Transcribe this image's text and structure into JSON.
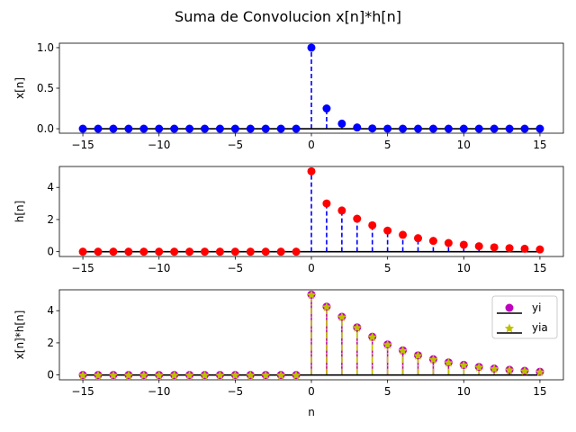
{
  "chart_data": {
    "type": "stem",
    "title": "Suma de Convolucion x[n]*h[n]",
    "n": [
      -15,
      -14,
      -13,
      -12,
      -11,
      -10,
      -9,
      -8,
      -7,
      -6,
      -5,
      -4,
      -3,
      -2,
      -1,
      0,
      1,
      2,
      3,
      4,
      5,
      6,
      7,
      8,
      9,
      10,
      11,
      12,
      13,
      14,
      15
    ],
    "xlim": [
      -16.54,
      16.54
    ],
    "xticks": [
      -15,
      -10,
      -5,
      0,
      5,
      10,
      15
    ],
    "xtick_labels": [
      "−15",
      "−10",
      "−5",
      "0",
      "5",
      "10",
      "15"
    ],
    "panels": [
      {
        "ylabel": "x[n]",
        "xlabel": "",
        "ylim": [
          -0.055,
          1.055
        ],
        "yticks": [
          0,
          0.5,
          1
        ],
        "ytick_labels": [
          "0.0",
          "0.5",
          "1.0"
        ],
        "series": [
          {
            "name": "x",
            "marker": "circle",
            "marker_color": "#0000ff",
            "stem_color": "#0000ff",
            "stem_style": "dashed",
            "values": [
              0,
              0,
              0,
              0,
              0,
              0,
              0,
              0,
              0,
              0,
              0,
              0,
              0,
              0,
              0,
              1,
              0.25,
              0.0625,
              0.0156,
              0.0039,
              0.001,
              0,
              0,
              0,
              0,
              0,
              0,
              0,
              0,
              0,
              0
            ]
          }
        ]
      },
      {
        "ylabel": "h[n]",
        "xlabel": "",
        "ylim": [
          -0.3,
          5.3
        ],
        "yticks": [
          0,
          2,
          4
        ],
        "ytick_labels": [
          "0",
          "2",
          "4"
        ],
        "series": [
          {
            "name": "h",
            "marker": "circle",
            "marker_color": "#ff0000",
            "stem_color": "#0000ff",
            "stem_style": "dashed",
            "values": [
              0,
              0,
              0,
              0,
              0,
              0,
              0,
              0,
              0,
              0,
              0,
              0,
              0,
              0,
              0,
              5,
              3,
              2.56,
              2.05,
              1.64,
              1.31,
              1.05,
              0.84,
              0.67,
              0.54,
              0.43,
              0.34,
              0.27,
              0.22,
              0.18,
              0.14
            ]
          }
        ]
      },
      {
        "ylabel": "x[n]*h[n]",
        "xlabel": "n",
        "ylim": [
          -0.3,
          5.3
        ],
        "yticks": [
          0,
          2,
          4
        ],
        "ytick_labels": [
          "0",
          "2",
          "4"
        ],
        "legend": {
          "position": "upper-right",
          "entries": [
            "yi",
            "yia"
          ]
        },
        "series": [
          {
            "name": "yi",
            "marker": "circle",
            "marker_color": "#bf00bf",
            "stem_color": "#bf00bf",
            "stem_style": "solid",
            "values": [
              0,
              0,
              0,
              0,
              0,
              0,
              0,
              0,
              0,
              0,
              0,
              0,
              0,
              0,
              0,
              5,
              4.25,
              3.62,
              2.96,
              2.38,
              1.9,
              1.53,
              1.22,
              0.98,
              0.78,
              0.63,
              0.5,
              0.4,
              0.32,
              0.26,
              0.2
            ]
          },
          {
            "name": "yia",
            "marker": "star",
            "marker_color": "#bfbf00",
            "stem_color": "#bfbf00",
            "stem_style": "dashdot",
            "values": [
              0,
              0,
              0,
              0,
              0,
              0,
              0,
              0,
              0,
              0,
              0,
              0,
              0,
              0,
              0,
              5,
              4.25,
              3.62,
              2.96,
              2.38,
              1.9,
              1.53,
              1.22,
              0.98,
              0.78,
              0.63,
              0.5,
              0.4,
              0.32,
              0.26,
              0.2
            ]
          }
        ]
      }
    ]
  }
}
